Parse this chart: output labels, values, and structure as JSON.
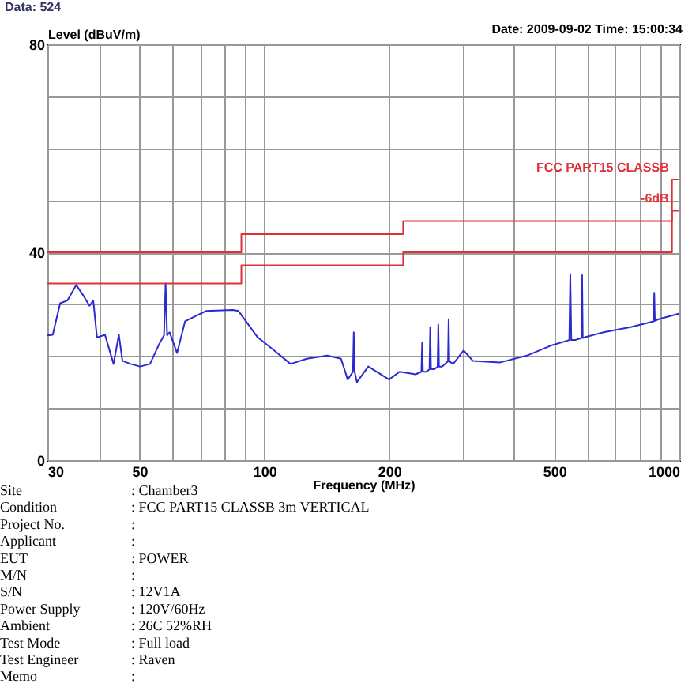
{
  "chart_data": {
    "type": "line",
    "xlabel": "Frequency (MHz)",
    "ylabel": "Level (dBuV/m)",
    "log": "x",
    "grid": true,
    "marker": "none",
    "line_style": "solid",
    "xlim": [
      30,
      1000
    ],
    "ylim": [
      0,
      80
    ],
    "xticks": [
      30,
      {
        "value": 40,
        "label": null
      },
      50,
      {
        "value": 60,
        "label": null
      },
      {
        "value": 70,
        "label": null
      },
      {
        "value": 80,
        "label": null
      },
      {
        "value": 90,
        "label": null
      },
      100,
      200,
      {
        "value": 300,
        "label": null
      },
      {
        "value": 400,
        "label": null
      },
      500,
      {
        "value": 600,
        "label": null
      },
      {
        "value": 700,
        "label": null
      },
      {
        "value": 800,
        "label": null
      },
      {
        "value": 900,
        "label": null
      },
      1000
    ],
    "yticks": [
      0,
      {
        "value": 10,
        "label": null
      },
      {
        "value": 20,
        "label": null
      },
      {
        "value": 30,
        "label": null
      },
      40,
      {
        "value": 50,
        "label": null
      },
      {
        "value": 60,
        "label": null
      },
      {
        "value": 70,
        "label": null
      },
      80
    ],
    "series": [
      {
        "type": "line",
        "color": "#2a2ad0",
        "x": [
          30,
          30.9,
          32.2,
          33.5,
          35.2,
          36.6,
          37.9,
          38.7,
          39.5,
          41.3,
          43.3,
          44.6,
          45.5,
          47.6,
          50.2,
          53.0,
          56.0,
          57.3,
          57.8,
          58.3,
          59.1,
          61.6,
          64.4,
          72.3,
          83.9,
          86.6,
          96.4,
          105.6,
          115.6,
          126.6,
          141.8,
          153,
          158.8,
          163.5,
          164.2,
          165,
          167.1,
          178,
          199.8,
          211.7,
          231.4,
          239,
          240,
          241,
          246,
          250,
          251,
          252,
          257,
          261.5,
          262.5,
          263.5,
          268,
          277,
          278,
          279,
          285,
          302,
          318,
          370,
          429,
          493,
          543,
          546,
          549,
          561,
          581,
          583,
          585,
          590,
          657,
          763,
          867,
          870,
          873,
          891,
          1000
        ],
        "values": [
          24,
          24.1,
          30.2,
          30.7,
          33.7,
          31.7,
          29.7,
          30.7,
          23.6,
          24.1,
          18.5,
          24.1,
          19.1,
          18.5,
          18,
          18.5,
          22.6,
          24,
          34,
          24,
          24.6,
          20.6,
          26.7,
          28.7,
          28.9,
          28.7,
          23.6,
          21.1,
          18.5,
          19.5,
          20.1,
          19.5,
          15.5,
          17,
          24.6,
          17,
          15,
          18,
          15.5,
          17,
          16.5,
          17,
          22.6,
          17,
          17,
          17.5,
          25.6,
          17.5,
          17.5,
          18,
          26.1,
          18,
          18,
          19,
          27.1,
          19,
          18.5,
          21.1,
          19.1,
          18.8,
          20.1,
          22.1,
          23.1,
          35.8,
          23.1,
          23.1,
          23.5,
          35.6,
          23.5,
          23.6,
          24.6,
          25.6,
          26.7,
          32.2,
          26.8,
          27.1,
          28.2
        ]
      },
      {
        "type": "step",
        "name": "FCC PART15 CLASSB",
        "color": "#e0303a",
        "x": [
          30,
          88,
          216,
          960,
          1000
        ],
        "values": [
          40,
          43.5,
          46,
          54,
          54
        ]
      },
      {
        "type": "step",
        "name": "-6dB",
        "color": "#e0303a",
        "x": [
          30,
          88,
          216,
          960,
          1000
        ],
        "values": [
          34,
          37.5,
          40,
          48,
          48
        ]
      }
    ],
    "annotations": [
      "Data: 524",
      "Date: 2009-09-02  Time: 15:00:34",
      "Site",
      ": Chamber3",
      "Condition",
      ": FCC PART15 CLASSB 3m VERTICAL",
      "Project No.",
      ":",
      "Applicant",
      ":",
      "EUT",
      ": POWER",
      "M/N",
      ":",
      "S/N",
      ": 12V1A",
      "Power Supply",
      ": 120V/60Hz",
      "Ambient",
      ": 26C 52%RH",
      "Test Mode",
      ": Full load",
      "Test Engineer",
      ": Raven",
      "Memo",
      ":"
    ]
  }
}
